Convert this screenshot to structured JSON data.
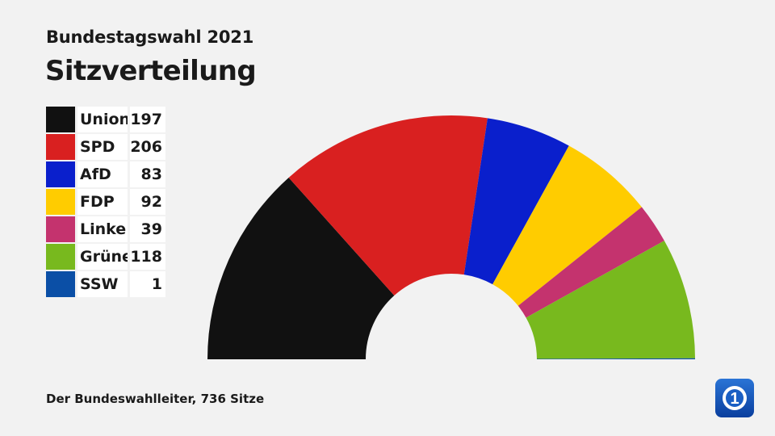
{
  "header": {
    "subtitle": "Bundestagswahl 2021",
    "title": "Sitzverteilung"
  },
  "footer": {
    "source": "Der Bundeswahlleiter, 736 Sitze"
  },
  "logo": {
    "icon": "ard-1-logo-icon",
    "text": "1"
  },
  "chart_data": {
    "type": "pie",
    "shape": "hemicycle",
    "total": 736,
    "categories": [
      "Union",
      "SPD",
      "AfD",
      "FDP",
      "Linke",
      "Grüne",
      "SSW"
    ],
    "values": [
      197,
      206,
      83,
      92,
      39,
      118,
      1
    ],
    "colors": [
      "#111111",
      "#d92020",
      "#0a1fcc",
      "#ffcc00",
      "#c4336e",
      "#78b91e",
      "#0b4fa6"
    ],
    "title": "Sitzverteilung",
    "subtitle": "Bundestagswahl 2021",
    "legend_position": "left"
  }
}
